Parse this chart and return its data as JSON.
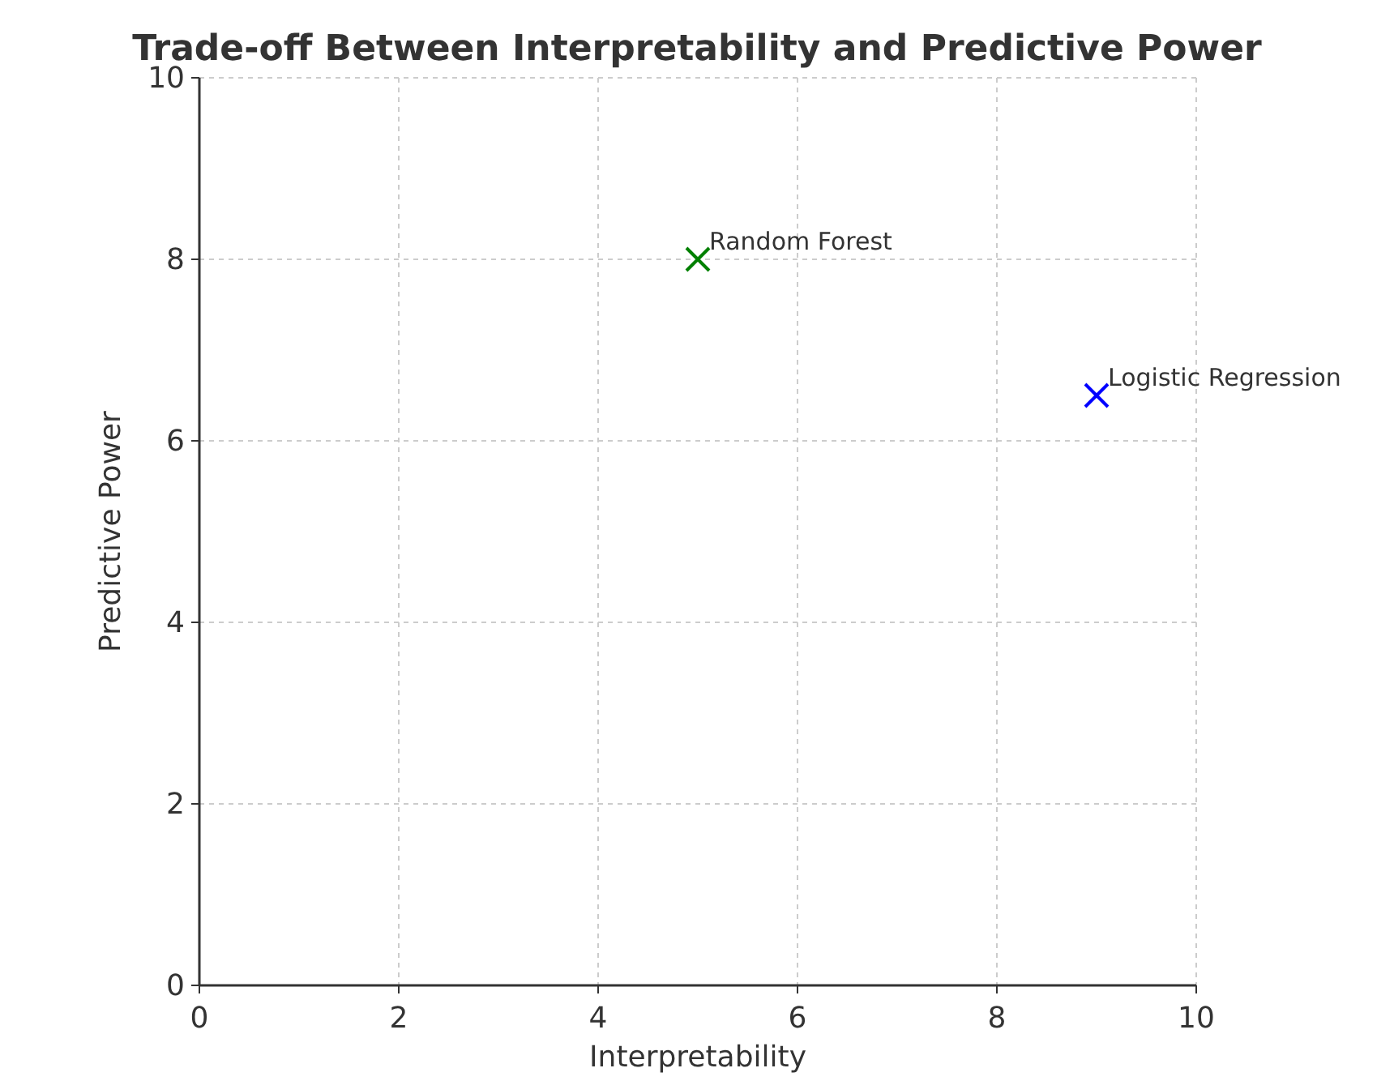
{
  "chart_data": {
    "type": "scatter",
    "title": "Trade-off Between Interpretability and Predictive Power",
    "xlabel": "Interpretability",
    "ylabel": "Predictive Power",
    "xlim": [
      0,
      10
    ],
    "ylim": [
      0,
      10
    ],
    "xticks": [
      0,
      2,
      4,
      6,
      8,
      10
    ],
    "yticks": [
      0,
      2,
      4,
      6,
      8,
      10
    ],
    "grid": true,
    "marker": "cross",
    "series": [
      {
        "name": "Random Forest",
        "color": "#008000",
        "x": [
          5
        ],
        "values": [
          8
        ]
      },
      {
        "name": "Logistic Regression",
        "color": "#0000ff",
        "x": [
          9
        ],
        "values": [
          6.5
        ]
      }
    ]
  }
}
